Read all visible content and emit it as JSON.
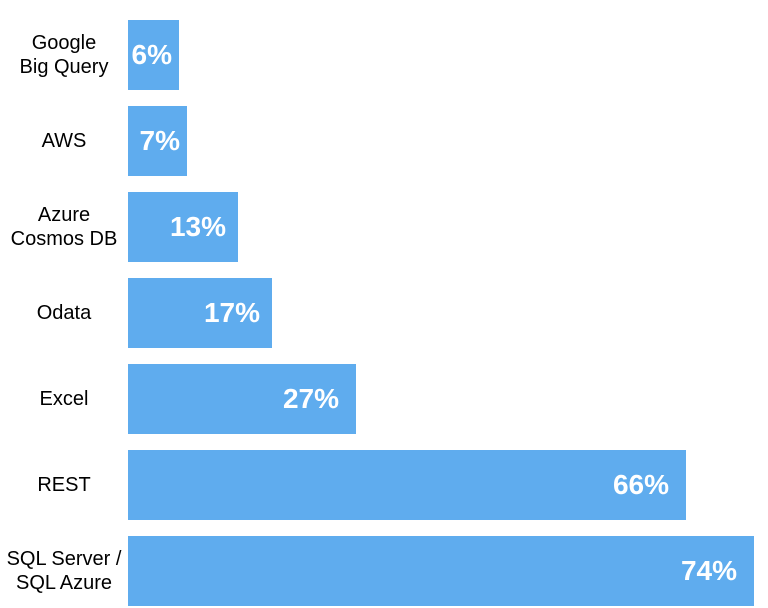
{
  "chart_data": {
    "type": "bar",
    "orientation": "horizontal",
    "title": "",
    "xlabel": "",
    "ylabel": "",
    "grid": false,
    "legend": null,
    "xlim": [
      0,
      75
    ],
    "categories": [
      "Google Big Query",
      "AWS",
      "Azure Cosmos DB",
      "Odata",
      "Excel",
      "REST",
      "SQL Server / SQL Azure"
    ],
    "category_lines": [
      [
        "Google",
        "Big Query"
      ],
      [
        "AWS"
      ],
      [
        "Azure",
        "Cosmos DB"
      ],
      [
        "Odata"
      ],
      [
        "Excel"
      ],
      [
        "REST"
      ],
      [
        "SQL Server /",
        "SQL Azure"
      ]
    ],
    "values": [
      6,
      7,
      13,
      17,
      27,
      66,
      74
    ],
    "value_labels": [
      "6%",
      "7%",
      "13%",
      "17%",
      "27%",
      "66%",
      "74%"
    ],
    "max_value": 74,
    "bar_color": "#5FACEE",
    "value_label_color": "#FFFFFF",
    "category_label_color": "#000000",
    "background_color": "#FFFFFF"
  }
}
